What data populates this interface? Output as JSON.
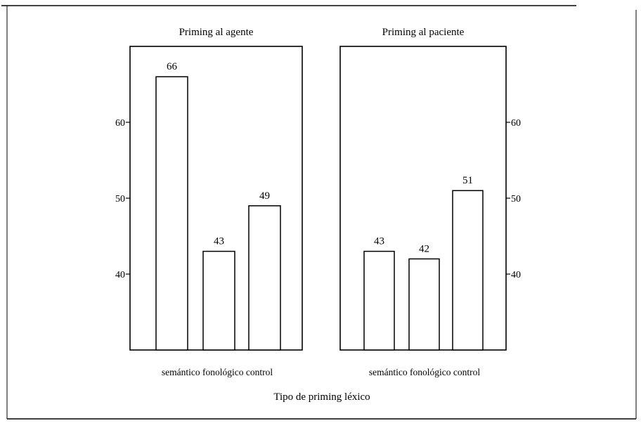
{
  "chart_data": {
    "type": "bar",
    "xlabel": "Tipo de priming léxico",
    "ylim": [
      30,
      70
    ],
    "yticks": [
      40,
      50,
      60
    ],
    "ytick_labels": [
      "40",
      "50",
      "60"
    ],
    "grid": false,
    "categories": [
      "semántico",
      "fonológico",
      "control"
    ],
    "panels": [
      {
        "title": "Priming al agente",
        "axis_side": "left",
        "values": [
          66,
          43,
          49
        ],
        "value_labels": [
          "66",
          "43",
          "49"
        ]
      },
      {
        "title": "Priming al paciente",
        "axis_side": "right",
        "values": [
          43,
          42,
          51
        ],
        "value_labels": [
          "43",
          "42",
          "51"
        ]
      }
    ]
  }
}
